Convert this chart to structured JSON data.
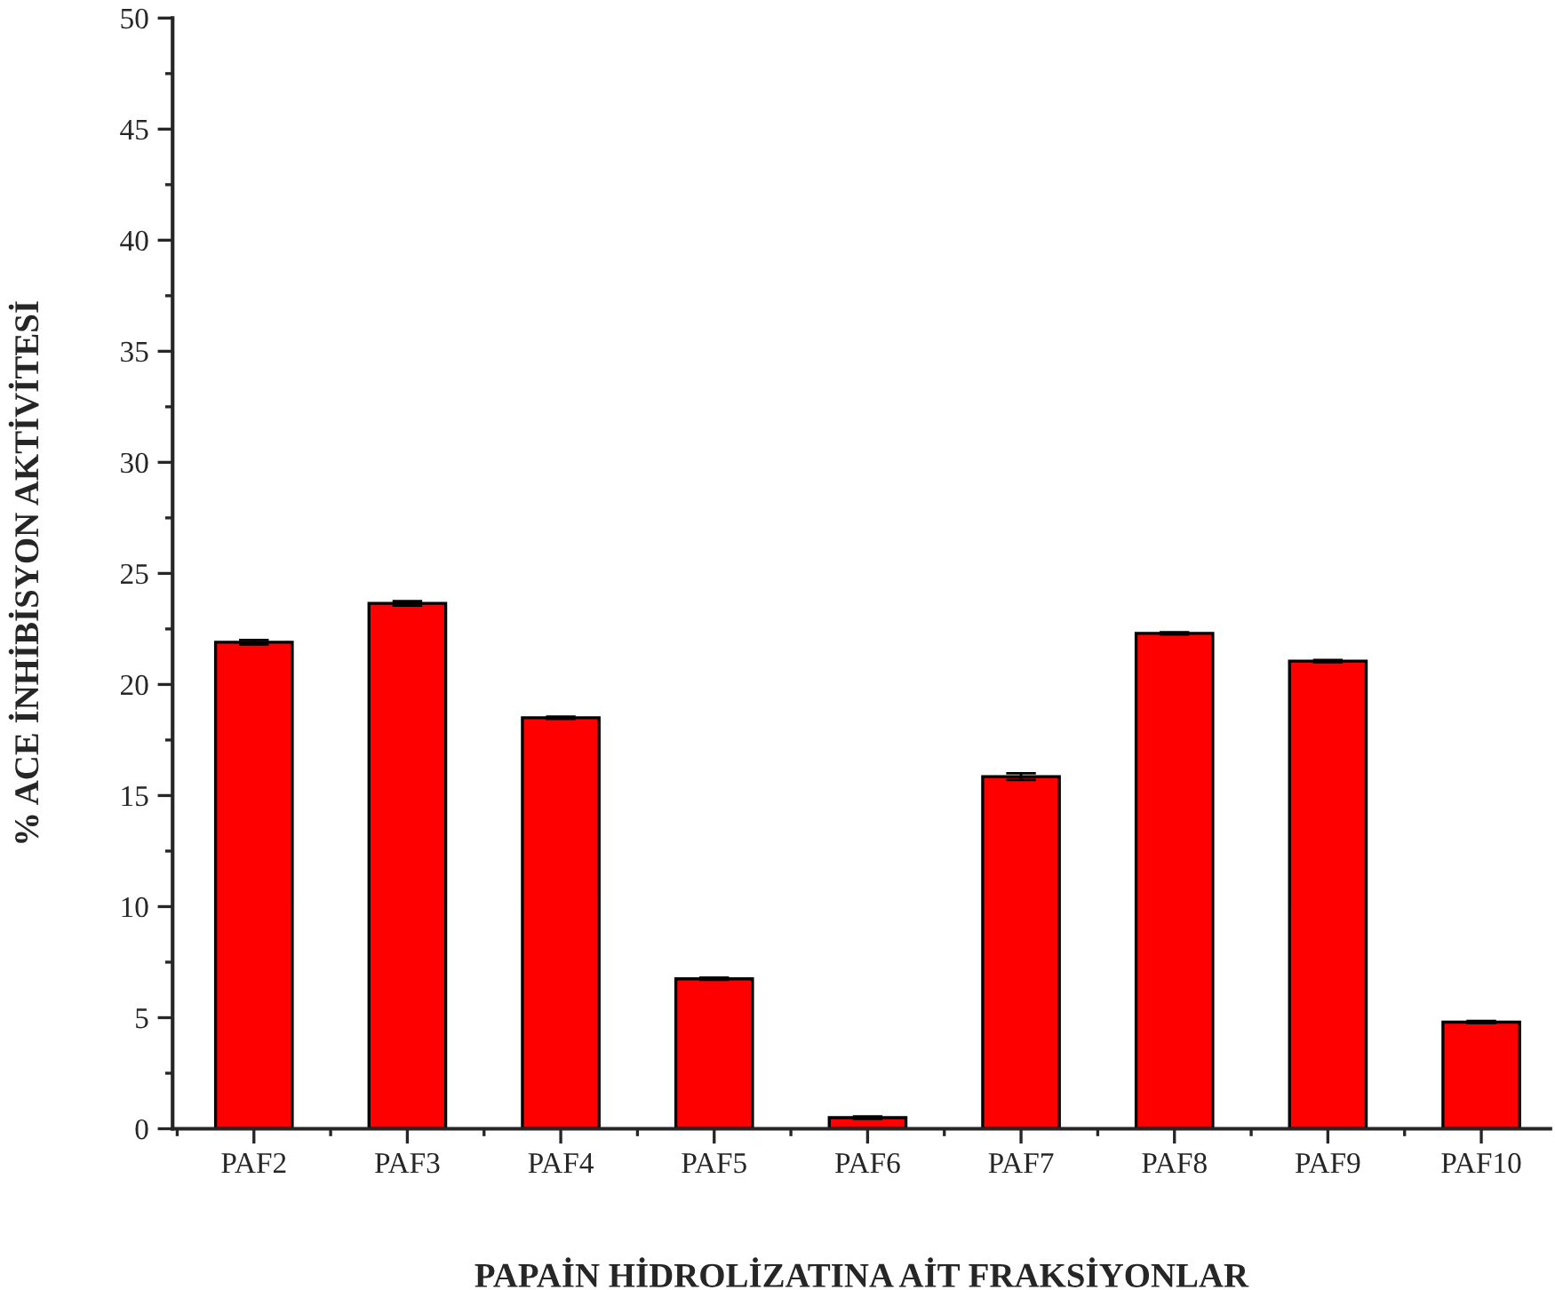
{
  "chart_data": {
    "type": "bar",
    "xlabel": "PAPAİN HİDROLİZATINA AİT FRAKSİYONLAR",
    "ylabel": "% ACE İNHİBİSYON AKTİVİTESİ",
    "categories": [
      "PAF2",
      "PAF3",
      "PAF4",
      "PAF5",
      "PAF6",
      "PAF7",
      "PAF8",
      "PAF9",
      "PAF10"
    ],
    "values": [
      21.9,
      23.65,
      18.5,
      6.75,
      0.5,
      15.85,
      22.3,
      21.05,
      4.8
    ],
    "errors": [
      0.1,
      0.1,
      0.05,
      0.05,
      0.05,
      0.15,
      0.05,
      0.05,
      0.05
    ],
    "color": "#ff0000",
    "ylim": [
      0,
      50
    ],
    "yticks": [
      0,
      5,
      10,
      15,
      20,
      25,
      30,
      35,
      40,
      45,
      50
    ],
    "grid": false
  }
}
